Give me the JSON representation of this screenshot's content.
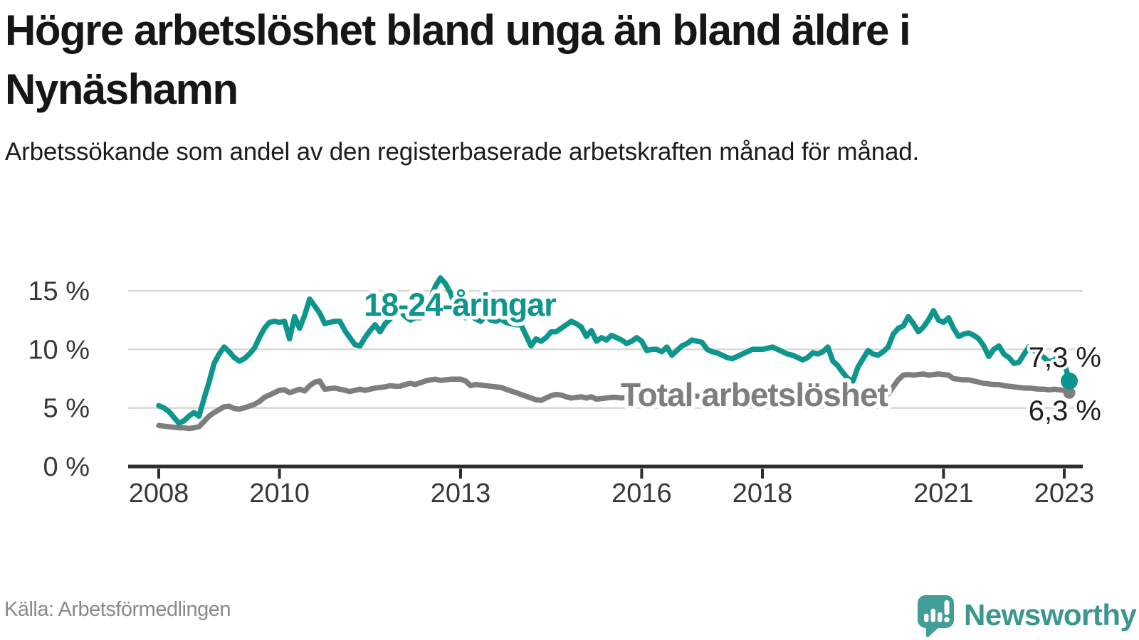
{
  "header": {
    "title": "Högre arbetslöshet bland unga än bland äldre i Nynäshamn",
    "subtitle": "Arbetssökande som andel av den registerbaserade arbetskraften månad för månad."
  },
  "footer": {
    "source": "Källa: Arbetsförmedlingen",
    "brand": "Newsworthy",
    "brand_icon": "newsworthy-bubble-barchart-icon"
  },
  "colors": {
    "youth_line": "#0D968D",
    "total_line": "#7E7E7E",
    "gridline": "#D9D9D9",
    "axis": "#2D2D2D",
    "axis_text": "#383838",
    "end_label_text": "#1E1E1E",
    "brand_teal": "#3B968F"
  },
  "chart_data": {
    "type": "line",
    "title": "Högre arbetslöshet bland unga än bland äldre i Nynäshamn",
    "xlabel": "",
    "ylabel": "Arbetssökande som andel av den registerbaserade arbetskraften",
    "x_start_year": 2008,
    "x_step_months": 1,
    "x_axis": {
      "tick_years": [
        2008,
        2010,
        2013,
        2016,
        2018,
        2021,
        2023
      ],
      "tick_labels": [
        "2008",
        "2010",
        "2013",
        "2016",
        "2018",
        "2021",
        "2023"
      ]
    },
    "y_axis": {
      "tick_values": [
        0,
        5,
        10,
        15
      ],
      "tick_labels": [
        "0 %",
        "5 %",
        "10 %",
        "15 %"
      ],
      "ylim": [
        0,
        16.5
      ],
      "grid": true
    },
    "series": [
      {
        "id": "total",
        "name": "Total arbetslöshet",
        "end_label": "6,3 %",
        "end_dot": true,
        "values": [
          3.5,
          3.45,
          3.4,
          3.35,
          3.3,
          3.3,
          3.25,
          3.3,
          3.4,
          3.85,
          4.3,
          4.6,
          4.85,
          5.1,
          5.15,
          4.95,
          4.9,
          5.0,
          5.15,
          5.3,
          5.55,
          5.9,
          6.1,
          6.3,
          6.5,
          6.55,
          6.3,
          6.45,
          6.6,
          6.45,
          6.9,
          7.2,
          7.3,
          6.6,
          6.65,
          6.7,
          6.6,
          6.5,
          6.4,
          6.5,
          6.6,
          6.5,
          6.6,
          6.7,
          6.75,
          6.8,
          6.9,
          6.85,
          6.85,
          7.0,
          7.1,
          7.0,
          7.15,
          7.3,
          7.4,
          7.45,
          7.35,
          7.4,
          7.45,
          7.45,
          7.45,
          7.3,
          6.9,
          7.0,
          6.95,
          6.9,
          6.85,
          6.8,
          6.75,
          6.6,
          6.45,
          6.3,
          6.15,
          6.0,
          5.85,
          5.7,
          5.65,
          5.85,
          6.05,
          6.15,
          6.1,
          5.95,
          5.85,
          5.9,
          5.95,
          5.85,
          5.95,
          5.75,
          5.8,
          5.85,
          5.9,
          5.9,
          5.85,
          5.9,
          5.95,
          5.95,
          5.9,
          5.85,
          5.9,
          5.95,
          5.9,
          5.95,
          5.85,
          5.9,
          5.95,
          6.0,
          6.05,
          6.0,
          5.95,
          5.9,
          5.85,
          5.8,
          5.85,
          5.9,
          5.85,
          5.9,
          5.95,
          6.0,
          6.05,
          6.0,
          6.0,
          6.05,
          6.0,
          5.95,
          5.9,
          5.85,
          5.8,
          5.75,
          5.8,
          5.85,
          5.9,
          5.95,
          5.9,
          5.85,
          5.9,
          5.95,
          5.9,
          5.85,
          5.9,
          5.95,
          6.0,
          6.05,
          6.0,
          6.0,
          6.1,
          6.2,
          6.8,
          7.4,
          7.8,
          7.85,
          7.8,
          7.85,
          7.9,
          7.8,
          7.85,
          7.9,
          7.85,
          7.8,
          7.5,
          7.45,
          7.4,
          7.4,
          7.3,
          7.2,
          7.1,
          7.05,
          7.0,
          7.0,
          6.9,
          6.85,
          6.8,
          6.75,
          6.7,
          6.7,
          6.65,
          6.6,
          6.6,
          6.55,
          6.6,
          6.55,
          6.5,
          6.3
        ]
      },
      {
        "id": "youth",
        "name": "18-24-åringar",
        "end_label": "7,3 %",
        "end_dot": true,
        "values": [
          5.2,
          5.0,
          4.7,
          4.2,
          3.7,
          3.9,
          4.3,
          4.6,
          4.3,
          5.8,
          7.2,
          8.8,
          9.6,
          10.2,
          9.8,
          9.3,
          9.0,
          9.2,
          9.6,
          10.1,
          11.0,
          11.8,
          12.3,
          12.4,
          12.3,
          12.4,
          10.9,
          12.8,
          11.8,
          12.9,
          14.3,
          13.7,
          13.1,
          12.2,
          12.3,
          12.4,
          12.4,
          11.6,
          11.0,
          10.4,
          10.3,
          11.0,
          11.6,
          12.1,
          11.5,
          12.2,
          12.6,
          13.0,
          13.3,
          12.8,
          12.5,
          12.7,
          12.7,
          13.4,
          14.3,
          15.4,
          16.1,
          15.6,
          14.8,
          13.6,
          13.2,
          12.7,
          12.9,
          12.6,
          12.4,
          12.9,
          12.5,
          12.4,
          12.6,
          12.3,
          12.2,
          12.1,
          12.1,
          11.2,
          10.3,
          10.9,
          10.7,
          11.0,
          11.5,
          11.5,
          11.8,
          12.1,
          12.4,
          12.2,
          11.9,
          11.1,
          11.6,
          10.7,
          11.0,
          10.8,
          11.2,
          11.0,
          10.8,
          10.5,
          10.7,
          11.0,
          10.7,
          9.9,
          10.0,
          10.0,
          9.8,
          10.2,
          9.5,
          9.9,
          10.3,
          10.5,
          10.8,
          10.7,
          10.6,
          10.0,
          9.8,
          9.7,
          9.5,
          9.3,
          9.2,
          9.4,
          9.6,
          9.8,
          10.0,
          10.0,
          10.0,
          10.1,
          10.2,
          10.0,
          9.8,
          9.6,
          9.5,
          9.3,
          9.1,
          9.3,
          9.7,
          9.6,
          9.8,
          10.2,
          9.0,
          8.6,
          8.0,
          7.5,
          7.3,
          8.5,
          9.2,
          9.9,
          9.6,
          9.5,
          9.8,
          10.2,
          11.3,
          11.8,
          12.0,
          12.8,
          12.2,
          11.5,
          11.9,
          12.5,
          13.3,
          12.5,
          12.3,
          12.7,
          11.8,
          11.1,
          11.3,
          11.4,
          11.2,
          10.9,
          10.3,
          9.4,
          10.0,
          10.3,
          9.6,
          9.3,
          8.8,
          8.9,
          9.6,
          10.2,
          9.9,
          9.6,
          9.3,
          8.9,
          9.1,
          9.4,
          8.9,
          7.3
        ]
      }
    ]
  }
}
